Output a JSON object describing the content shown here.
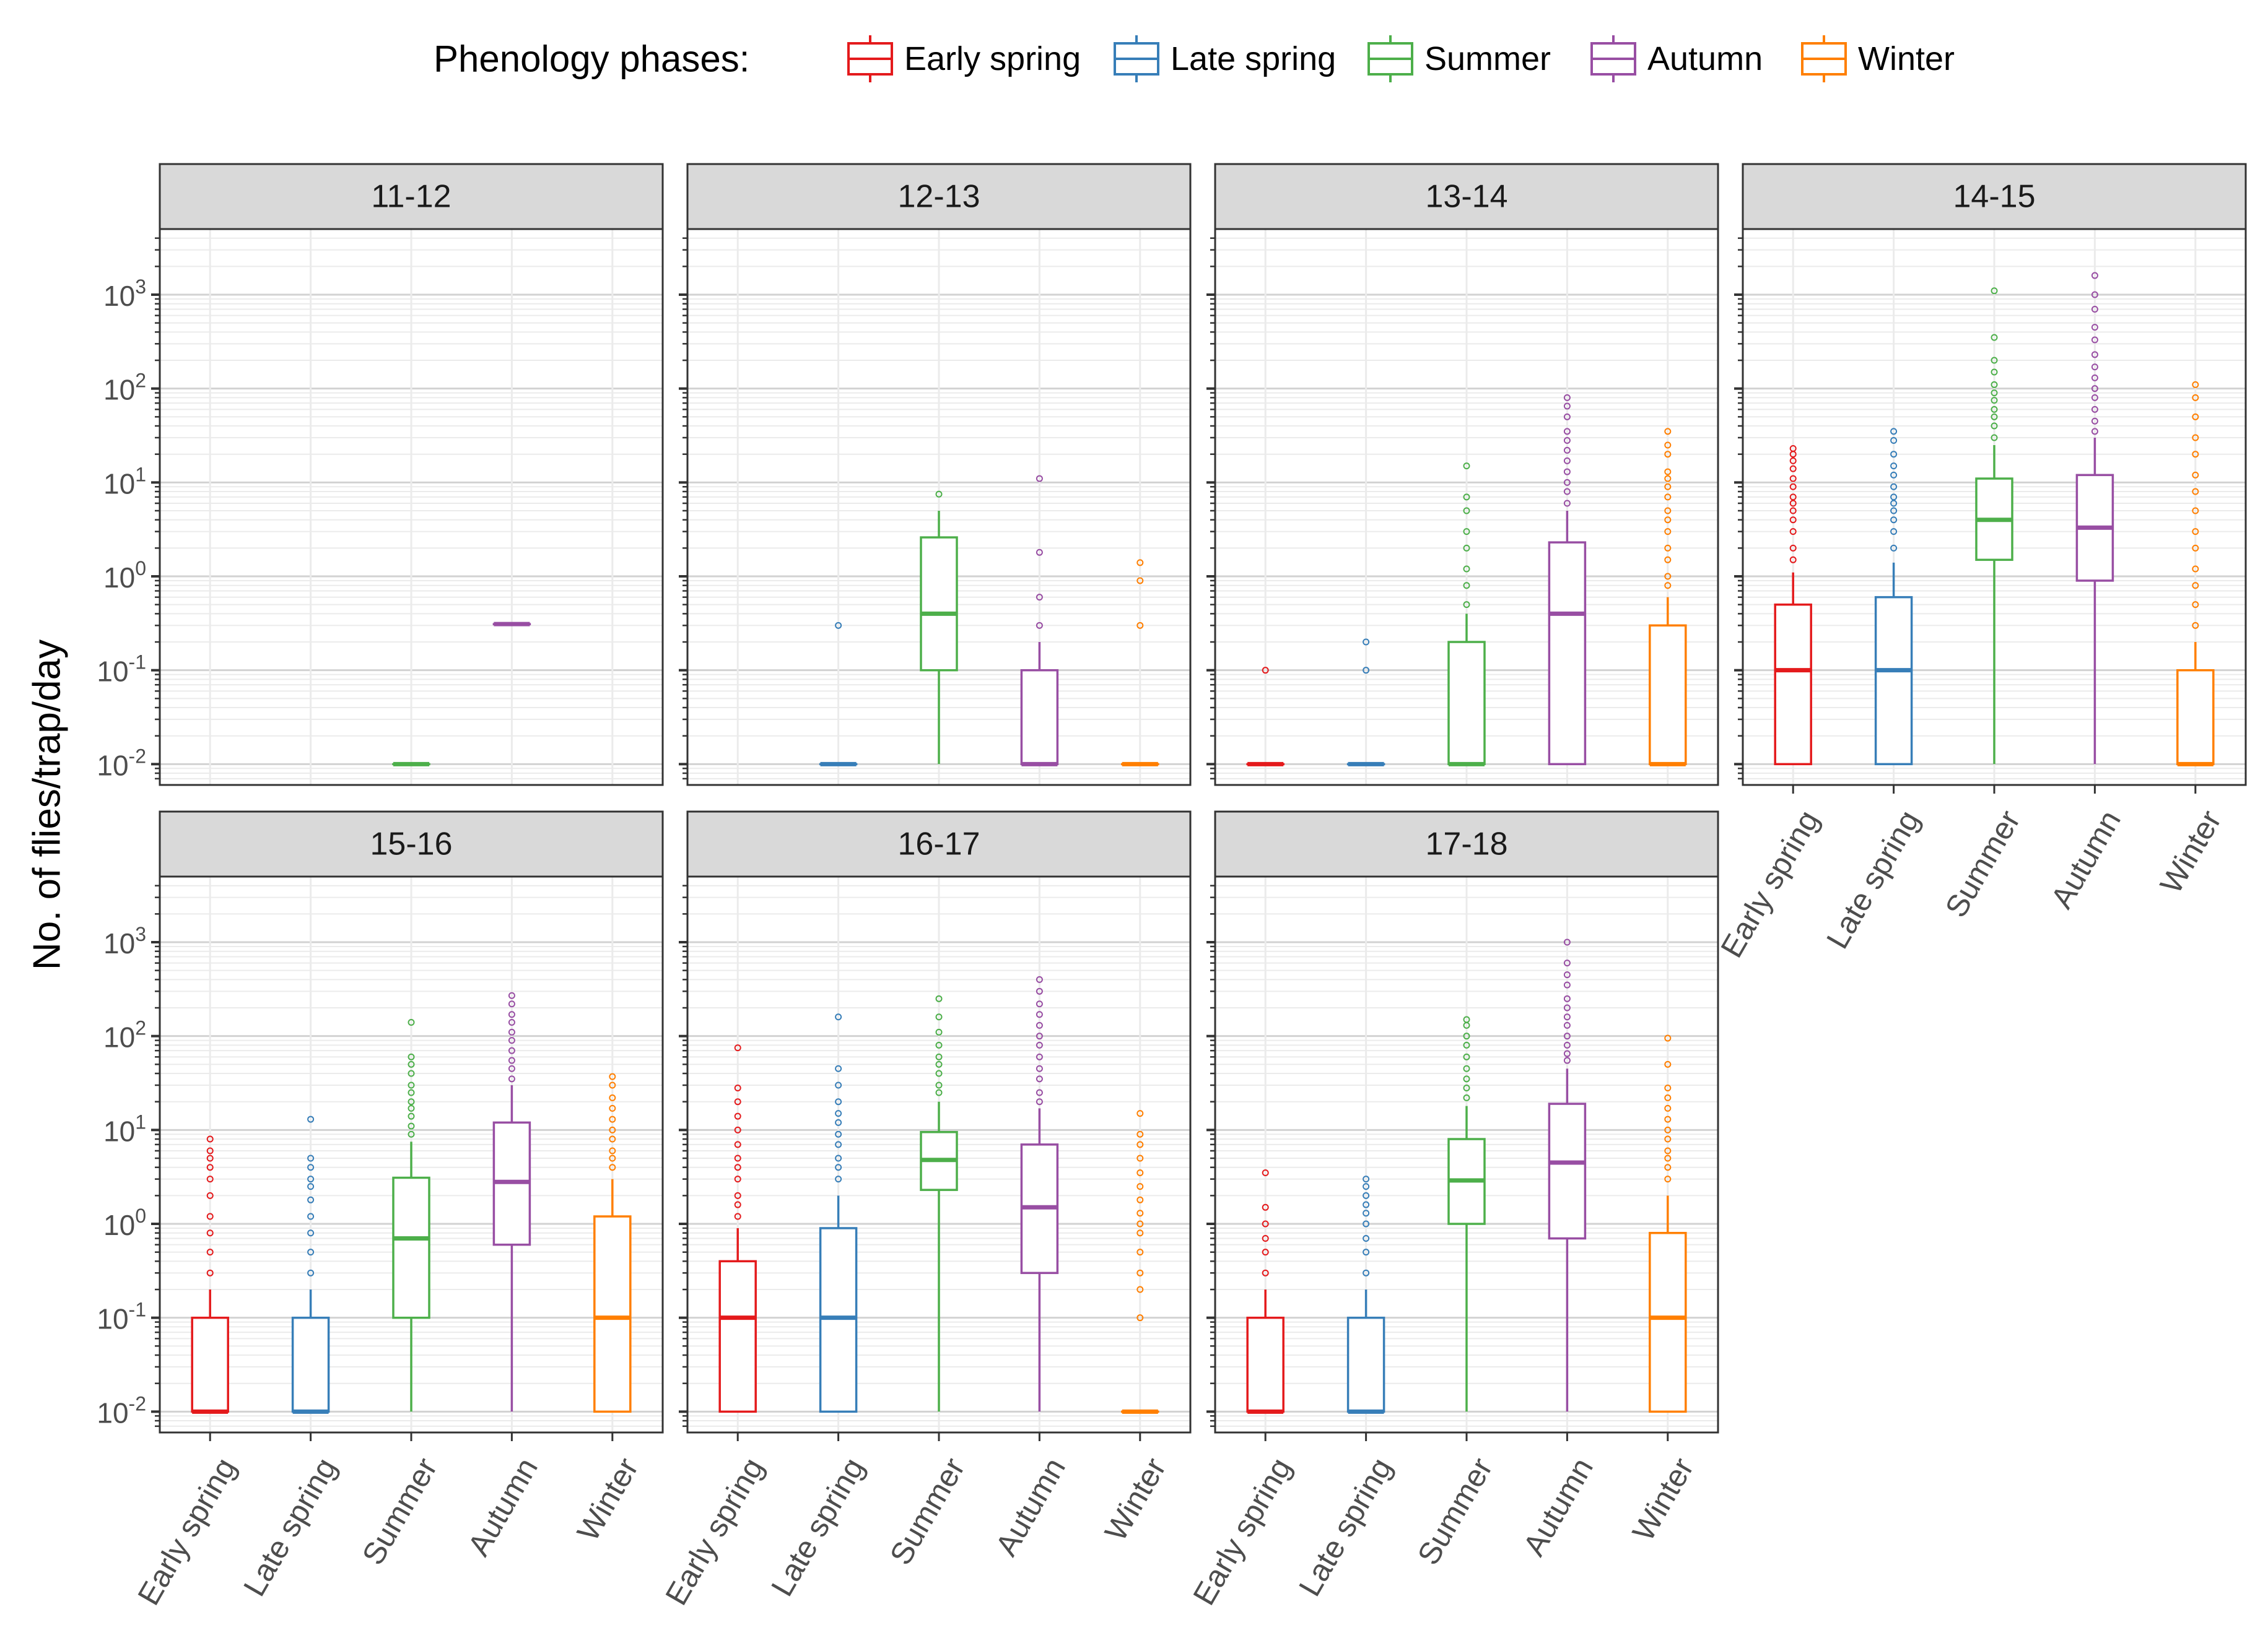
{
  "chart_data": {
    "type": "boxplot",
    "title": "",
    "ylabel": "No. of flies/trap/day",
    "xlabel": "",
    "y_scale": "log10",
    "ylim": [
      0.006,
      5000
    ],
    "y_ticks": [
      {
        "exp": -2,
        "base": "10",
        "sup": "-2"
      },
      {
        "exp": -1,
        "base": "10",
        "sup": "-1"
      },
      {
        "exp": 0,
        "base": "10",
        "sup": "0"
      },
      {
        "exp": 1,
        "base": "10",
        "sup": "1"
      },
      {
        "exp": 2,
        "base": "10",
        "sup": "2"
      },
      {
        "exp": 3,
        "base": "10",
        "sup": "3"
      }
    ],
    "categories": [
      "Early spring",
      "Late spring",
      "Summer",
      "Autumn",
      "Winter"
    ],
    "legend": {
      "title": "Phenology phases:",
      "position": "top",
      "items": [
        {
          "label": "Early spring",
          "color": "#E41A1C"
        },
        {
          "label": "Late spring",
          "color": "#377EB8"
        },
        {
          "label": "Summer",
          "color": "#4DAF4A"
        },
        {
          "label": "Autumn",
          "color": "#984EA3"
        },
        {
          "label": "Winter",
          "color": "#FF7F00"
        }
      ]
    },
    "panels": [
      {
        "label": "11-12",
        "boxes": [
          null,
          null,
          {
            "low": 0.01,
            "q1": 0.01,
            "median": 0.01,
            "q3": 0.01,
            "high": 0.01,
            "outliers": []
          },
          {
            "low": 0.31,
            "q1": 0.31,
            "median": 0.31,
            "q3": 0.31,
            "high": 0.31,
            "outliers": []
          },
          null
        ]
      },
      {
        "label": "12-13",
        "boxes": [
          null,
          {
            "low": 0.01,
            "q1": 0.01,
            "median": 0.01,
            "q3": 0.01,
            "high": 0.01,
            "outliers": [
              0.3
            ]
          },
          {
            "low": 0.01,
            "q1": 0.1,
            "median": 0.4,
            "q3": 2.6,
            "high": 5,
            "outliers": [
              7.5
            ]
          },
          {
            "low": 0.01,
            "q1": 0.01,
            "median": 0.01,
            "q3": 0.1,
            "high": 0.2,
            "outliers": [
              0.3,
              0.6,
              1.8,
              11
            ]
          },
          {
            "low": 0.01,
            "q1": 0.01,
            "median": 0.01,
            "q3": 0.01,
            "high": 0.01,
            "outliers": [
              0.3,
              0.9,
              1.4
            ]
          }
        ]
      },
      {
        "label": "13-14",
        "boxes": [
          {
            "low": 0.01,
            "q1": 0.01,
            "median": 0.01,
            "q3": 0.01,
            "high": 0.01,
            "outliers": [
              0.1
            ]
          },
          {
            "low": 0.01,
            "q1": 0.01,
            "median": 0.01,
            "q3": 0.01,
            "high": 0.01,
            "outliers": [
              0.1,
              0.2
            ]
          },
          {
            "low": 0.01,
            "q1": 0.01,
            "median": 0.01,
            "q3": 0.2,
            "high": 0.4,
            "outliers": [
              0.5,
              0.8,
              1.2,
              2,
              3,
              5,
              7,
              15
            ]
          },
          {
            "low": 0.01,
            "q1": 0.01,
            "median": 0.4,
            "q3": 2.3,
            "high": 5,
            "outliers": [
              6,
              8,
              10,
              13,
              17,
              22,
              28,
              35,
              50,
              65,
              80
            ]
          },
          {
            "low": 0.01,
            "q1": 0.01,
            "median": 0.01,
            "q3": 0.3,
            "high": 0.6,
            "outliers": [
              0.8,
              1,
              1.5,
              2,
              3,
              4,
              5,
              7,
              9,
              11,
              13,
              20,
              25,
              35
            ]
          }
        ]
      },
      {
        "label": "14-15",
        "boxes": [
          {
            "low": 0.01,
            "q1": 0.01,
            "median": 0.1,
            "q3": 0.5,
            "high": 1.1,
            "outliers": [
              1.5,
              2,
              3,
              4,
              5,
              6,
              7,
              9,
              11,
              14,
              17,
              20,
              23
            ]
          },
          {
            "low": 0.01,
            "q1": 0.01,
            "median": 0.1,
            "q3": 0.6,
            "high": 1.4,
            "outliers": [
              2,
              3,
              4,
              5,
              6,
              7,
              9,
              12,
              15,
              20,
              28,
              35
            ]
          },
          {
            "low": 0.01,
            "q1": 1.5,
            "median": 4,
            "q3": 11,
            "high": 25,
            "outliers": [
              30,
              40,
              50,
              60,
              75,
              90,
              110,
              150,
              200,
              350,
              1100
            ]
          },
          {
            "low": 0.01,
            "q1": 0.9,
            "median": 3.3,
            "q3": 12,
            "high": 30,
            "outliers": [
              35,
              45,
              60,
              80,
              100,
              130,
              170,
              230,
              330,
              450,
              700,
              1000,
              1600
            ]
          },
          {
            "low": 0.01,
            "q1": 0.01,
            "median": 0.01,
            "q3": 0.1,
            "high": 0.2,
            "outliers": [
              0.3,
              0.5,
              0.8,
              1.2,
              2,
              3,
              5,
              8,
              12,
              20,
              30,
              50,
              80,
              110
            ]
          }
        ]
      },
      {
        "label": "15-16",
        "boxes": [
          {
            "low": 0.01,
            "q1": 0.01,
            "median": 0.01,
            "q3": 0.1,
            "high": 0.2,
            "outliers": [
              0.3,
              0.5,
              0.8,
              1.2,
              2,
              3,
              4,
              5,
              6,
              8
            ]
          },
          {
            "low": 0.01,
            "q1": 0.01,
            "median": 0.01,
            "q3": 0.1,
            "high": 0.2,
            "outliers": [
              0.3,
              0.5,
              0.8,
              1.2,
              1.8,
              2.5,
              3,
              4,
              5,
              13
            ]
          },
          {
            "low": 0.01,
            "q1": 0.1,
            "median": 0.7,
            "q3": 3.1,
            "high": 7.5,
            "outliers": [
              9,
              11,
              14,
              17,
              20,
              25,
              30,
              40,
              50,
              60,
              140
            ]
          },
          {
            "low": 0.01,
            "q1": 0.6,
            "median": 2.8,
            "q3": 12,
            "high": 30,
            "outliers": [
              35,
              45,
              55,
              70,
              90,
              110,
              140,
              170,
              220,
              270
            ]
          },
          {
            "low": 0.01,
            "q1": 0.01,
            "median": 0.1,
            "q3": 1.2,
            "high": 3,
            "outliers": [
              4,
              5,
              6,
              8,
              10,
              13,
              17,
              22,
              30,
              37
            ]
          }
        ]
      },
      {
        "label": "16-17",
        "boxes": [
          {
            "low": 0.01,
            "q1": 0.01,
            "median": 0.1,
            "q3": 0.4,
            "high": 0.9,
            "outliers": [
              1.2,
              1.6,
              2,
              3,
              4,
              5,
              7,
              10,
              14,
              20,
              28,
              75
            ]
          },
          {
            "low": 0.01,
            "q1": 0.01,
            "median": 0.1,
            "q3": 0.9,
            "high": 2,
            "outliers": [
              3,
              4,
              5,
              7,
              9,
              12,
              15,
              20,
              30,
              45,
              160
            ]
          },
          {
            "low": 0.01,
            "q1": 2.3,
            "median": 4.8,
            "q3": 9.5,
            "high": 20,
            "outliers": [
              25,
              30,
              40,
              50,
              60,
              80,
              110,
              160,
              250
            ]
          },
          {
            "low": 0.01,
            "q1": 0.3,
            "median": 1.5,
            "q3": 7,
            "high": 17,
            "outliers": [
              20,
              25,
              35,
              45,
              60,
              80,
              100,
              130,
              170,
              220,
              300,
              400
            ]
          },
          {
            "low": 0.01,
            "q1": 0.01,
            "median": 0.01,
            "q3": 0.01,
            "high": 0.01,
            "outliers": [
              0.1,
              0.2,
              0.3,
              0.5,
              0.8,
              1,
              1.3,
              1.8,
              2.5,
              3.5,
              5,
              7,
              9,
              15
            ]
          }
        ]
      },
      {
        "label": "17-18",
        "boxes": [
          {
            "low": 0.01,
            "q1": 0.01,
            "median": 0.01,
            "q3": 0.1,
            "high": 0.2,
            "outliers": [
              0.3,
              0.5,
              0.7,
              1,
              1.5,
              3.5
            ]
          },
          {
            "low": 0.01,
            "q1": 0.01,
            "median": 0.01,
            "q3": 0.1,
            "high": 0.2,
            "outliers": [
              0.3,
              0.5,
              0.7,
              1,
              1.3,
              1.6,
              2,
              2.5,
              3
            ]
          },
          {
            "low": 0.01,
            "q1": 1,
            "median": 2.9,
            "q3": 8,
            "high": 18,
            "outliers": [
              22,
              28,
              35,
              45,
              60,
              80,
              100,
              130,
              150
            ]
          },
          {
            "low": 0.01,
            "q1": 0.7,
            "median": 4.5,
            "q3": 19,
            "high": 45,
            "outliers": [
              55,
              65,
              80,
              100,
              130,
              160,
              200,
              250,
              350,
              450,
              600,
              1000
            ]
          },
          {
            "low": 0.01,
            "q1": 0.01,
            "median": 0.1,
            "q3": 0.8,
            "high": 2,
            "outliers": [
              3,
              4,
              5,
              6,
              8,
              10,
              13,
              17,
              22,
              28,
              50,
              95
            ]
          }
        ]
      }
    ]
  }
}
